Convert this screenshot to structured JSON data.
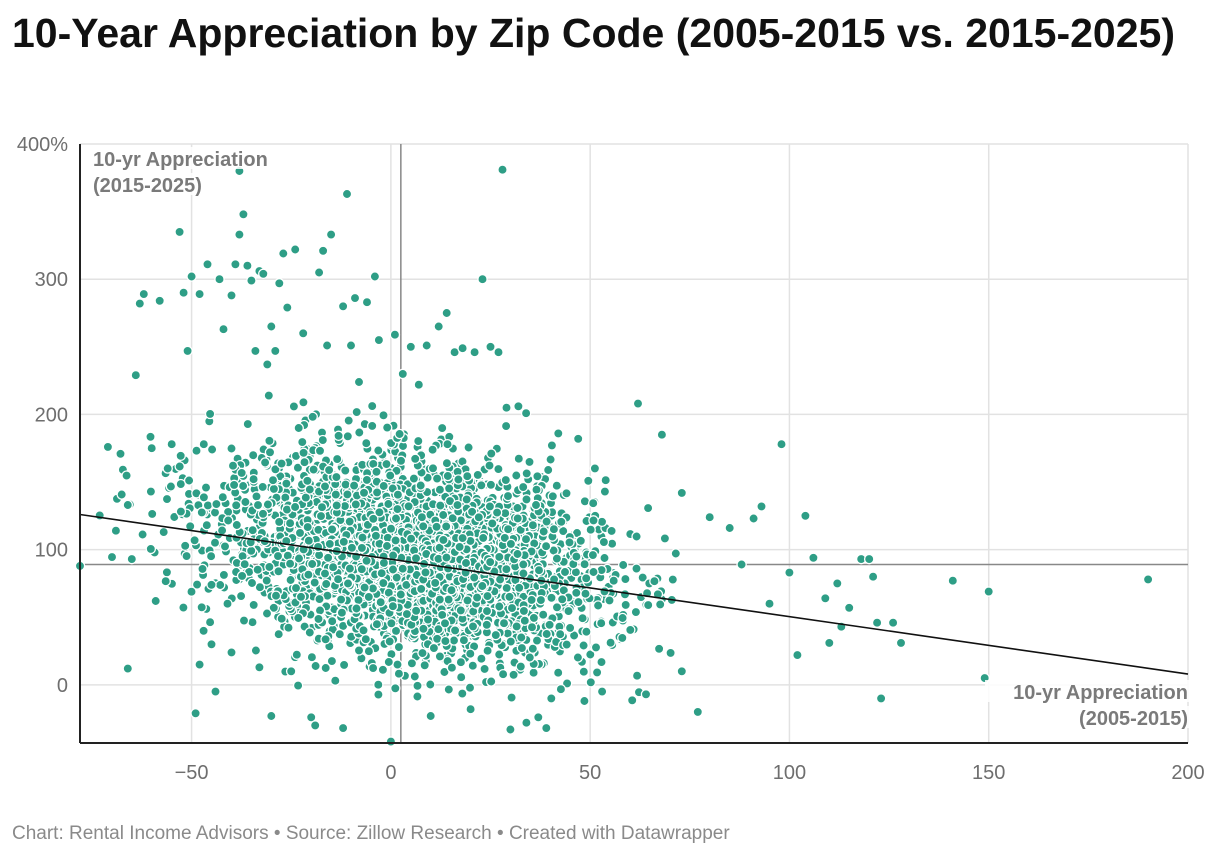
{
  "header": {
    "title": "10-Year Appreciation by Zip Code (2005-2015 vs. 2015-2025)"
  },
  "footer": {
    "text": "Chart: Rental Income Advisors • Source: Zillow Research • Created with Datawrapper"
  },
  "colors": {
    "point": "#2e9e86",
    "point_stroke": "#ffffff",
    "grid": "#e2e2e2",
    "reference": "#888888",
    "trend": "#111111"
  },
  "chart_data": {
    "type": "scatter",
    "title": "10-Year Appreciation by Zip Code (2005-2015 vs. 2015-2025)",
    "xlabel": "10-yr Appreciation (2005-2015)",
    "ylabel": "10-yr Appreciation (2015-2025)",
    "xlim": [
      -78,
      200
    ],
    "ylim": [
      -43,
      400
    ],
    "x_ticks": [
      -50,
      0,
      50,
      100,
      150,
      200
    ],
    "x_tick_labels": [
      "−50",
      "0",
      "50",
      "100",
      "150",
      "200"
    ],
    "y_ticks": [
      0,
      100,
      200,
      300,
      400
    ],
    "y_tick_labels": [
      "0",
      "100",
      "200",
      "300",
      "400%"
    ],
    "grid": true,
    "reference_lines": {
      "x": 2.5,
      "y": 89
    },
    "trend_line": {
      "x": [
        -78,
        200
      ],
      "y": [
        126,
        8
      ]
    },
    "annotations": {
      "y_axis_line1": "10-yr Appreciation",
      "y_axis_line2": "(2015-2025)",
      "x_axis_line1": "10-yr Appreciation",
      "x_axis_line2": "(2005-2015)"
    },
    "cluster": {
      "n_points": 3200,
      "x_center": 5,
      "x_spread": 24,
      "y_center": 95,
      "y_spread": 36,
      "slope": -0.45
    },
    "points": [
      [
        -78,
        88
      ],
      [
        -71,
        176
      ],
      [
        -69,
        114
      ],
      [
        -66,
        133
      ],
      [
        -66,
        12
      ],
      [
        -65,
        93
      ],
      [
        -64,
        229
      ],
      [
        -63,
        282
      ],
      [
        -62,
        289
      ],
      [
        -60,
        175
      ],
      [
        -59,
        62
      ],
      [
        -58,
        284
      ],
      [
        -57,
        113
      ],
      [
        -56,
        160
      ],
      [
        -55,
        178
      ],
      [
        -53,
        335
      ],
      [
        -52,
        290
      ],
      [
        -51,
        247
      ],
      [
        -50,
        302
      ],
      [
        -49,
        -21
      ],
      [
        -48,
        289
      ],
      [
        -47,
        40
      ],
      [
        -46,
        311
      ],
      [
        -45,
        74
      ],
      [
        -44,
        -5
      ],
      [
        -43,
        300
      ],
      [
        -42,
        263
      ],
      [
        -41,
        60
      ],
      [
        -40,
        288
      ],
      [
        -39,
        311
      ],
      [
        -38,
        333
      ],
      [
        -37,
        348
      ],
      [
        -36,
        310
      ],
      [
        -35,
        299
      ],
      [
        -34,
        247
      ],
      [
        -33,
        306
      ],
      [
        -32,
        304
      ],
      [
        -31,
        237
      ],
      [
        -30,
        265
      ],
      [
        -29,
        247
      ],
      [
        -28,
        297
      ],
      [
        -27,
        319
      ],
      [
        -26,
        279
      ],
      [
        -24,
        322
      ],
      [
        -22,
        260
      ],
      [
        -20,
        -24
      ],
      [
        -19,
        -30
      ],
      [
        -18,
        305
      ],
      [
        -17,
        321
      ],
      [
        -16,
        251
      ],
      [
        -15,
        333
      ],
      [
        -12,
        280
      ],
      [
        -11,
        363
      ],
      [
        -10,
        251
      ],
      [
        -9,
        286
      ],
      [
        -8,
        224
      ],
      [
        -6,
        283
      ],
      [
        -4,
        302
      ],
      [
        -3,
        255
      ],
      [
        1,
        259
      ],
      [
        3,
        230
      ],
      [
        5,
        250
      ],
      [
        7,
        222
      ],
      [
        9,
        251
      ],
      [
        12,
        265
      ],
      [
        14,
        275
      ],
      [
        16,
        246
      ],
      [
        18,
        249
      ],
      [
        21,
        246
      ],
      [
        23,
        300
      ],
      [
        25,
        250
      ],
      [
        27,
        246
      ],
      [
        28,
        381
      ],
      [
        29,
        205
      ],
      [
        32,
        206
      ],
      [
        42,
        186
      ],
      [
        47,
        182
      ],
      [
        62,
        208
      ],
      [
        68,
        185
      ],
      [
        73,
        142
      ],
      [
        80,
        124
      ],
      [
        85,
        116
      ],
      [
        88,
        89
      ],
      [
        91,
        123
      ],
      [
        93,
        132
      ],
      [
        95,
        60
      ],
      [
        98,
        178
      ],
      [
        100,
        83
      ],
      [
        102,
        22
      ],
      [
        104,
        125
      ],
      [
        106,
        94
      ],
      [
        109,
        64
      ],
      [
        110,
        31
      ],
      [
        112,
        75
      ],
      [
        113,
        43
      ],
      [
        115,
        57
      ],
      [
        118,
        93
      ],
      [
        120,
        93
      ],
      [
        121,
        80
      ],
      [
        122,
        46
      ],
      [
        123,
        -10
      ],
      [
        126,
        46
      ],
      [
        128,
        31
      ],
      [
        141,
        77
      ],
      [
        149,
        5
      ],
      [
        150,
        69
      ],
      [
        190,
        78
      ],
      [
        -30,
        -23
      ],
      [
        -12,
        -32
      ],
      [
        0,
        -42
      ],
      [
        10,
        -23
      ],
      [
        20,
        -18
      ],
      [
        30,
        -33
      ],
      [
        34,
        -28
      ],
      [
        37,
        -24
      ],
      [
        39,
        -32
      ],
      [
        77,
        -20
      ],
      [
        64,
        -7
      ],
      [
        53,
        -5
      ],
      [
        73,
        10
      ],
      [
        -25,
        10
      ],
      [
        -33,
        13
      ],
      [
        -40,
        24
      ],
      [
        -45,
        30
      ],
      [
        -48,
        15
      ],
      [
        -38,
        380
      ]
    ]
  }
}
